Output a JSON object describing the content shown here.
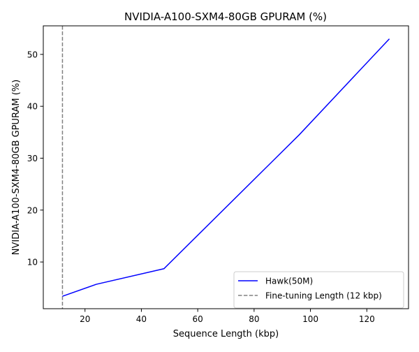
{
  "chart_data": {
    "type": "line",
    "title": "NVIDIA-A100-SXM4-80GB GPURAM (%)",
    "xlabel": "Sequence Length (kbp)",
    "ylabel": "NVIDIA-A100-SXM4-80GB GPURAM (%)",
    "xlim": [
      5.2,
      134.8
    ],
    "ylim": [
      1.0,
      55.5
    ],
    "xticks": [
      20,
      40,
      60,
      80,
      100,
      120
    ],
    "yticks": [
      10,
      20,
      30,
      40,
      50
    ],
    "grid": false,
    "legend_position": "lower-right",
    "series": [
      {
        "name": "Hawk(50M)",
        "color": "#0000ff",
        "linestyle": "solid",
        "x": [
          12,
          24,
          48,
          96,
          128
        ],
        "y": [
          3.4,
          5.7,
          8.7,
          34.5,
          53.0
        ]
      }
    ],
    "reference_lines": [
      {
        "name": "Fine-tuning Length (12 kbp)",
        "orientation": "vertical",
        "x": 12,
        "color": "#808080",
        "linestyle": "dashed"
      }
    ]
  }
}
